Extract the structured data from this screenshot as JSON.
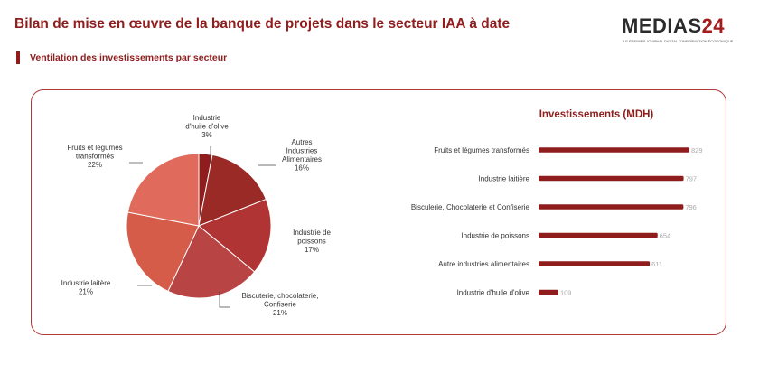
{
  "header": {
    "title": "Bilan de mise en œuvre de la banque de projets dans le secteur IAA à date",
    "subtitle": "Ventilation des investissements par secteur"
  },
  "logo": {
    "brand": "MEDIAS",
    "number": "24",
    "tagline": "LE PREMIER JOURNAL DIGITAL D'INFORMATION ÉCONOMIQUE"
  },
  "colors": {
    "accent": "#8f1d1d",
    "bar": "#8f1d1d",
    "panel_border": "#b23a3a"
  },
  "chart_data": [
    {
      "type": "pie",
      "slices": [
        {
          "label": "Industrie\nd'huile d'olive",
          "value": 3,
          "pct_label": "3%",
          "color": "#8f1d1d"
        },
        {
          "label": "Autres\nIndustries\nAlimentaires",
          "value": 16,
          "pct_label": "16%",
          "color": "#9a2a26"
        },
        {
          "label": "Industrie de\npoissons",
          "value": 17,
          "pct_label": "17%",
          "color": "#b03433"
        },
        {
          "label": "Biscuterie, chocolaterie,\nConfiserie",
          "value": 21,
          "pct_label": "21%",
          "color": "#b84444"
        },
        {
          "label": "Industrie laitère",
          "value": 21,
          "pct_label": "21%",
          "color": "#d65c4a"
        },
        {
          "label": "Fruits et légumes\ntransformés",
          "value": 22,
          "pct_label": "22%",
          "color": "#e06b5c"
        }
      ]
    },
    {
      "type": "bar",
      "orientation": "horizontal",
      "title": "Investissements (MDH)",
      "categories": [
        "Fruits et légumes transformés",
        "Industrie laitière",
        "Bisculerie, Chocolaterie et Confiserie",
        "Industrie de poissons",
        "Autre industries alimentaires",
        "Industrie d'huile d'olive"
      ],
      "values": [
        829,
        797,
        796,
        654,
        611,
        109
      ],
      "xlim": [
        0,
        829
      ]
    }
  ]
}
